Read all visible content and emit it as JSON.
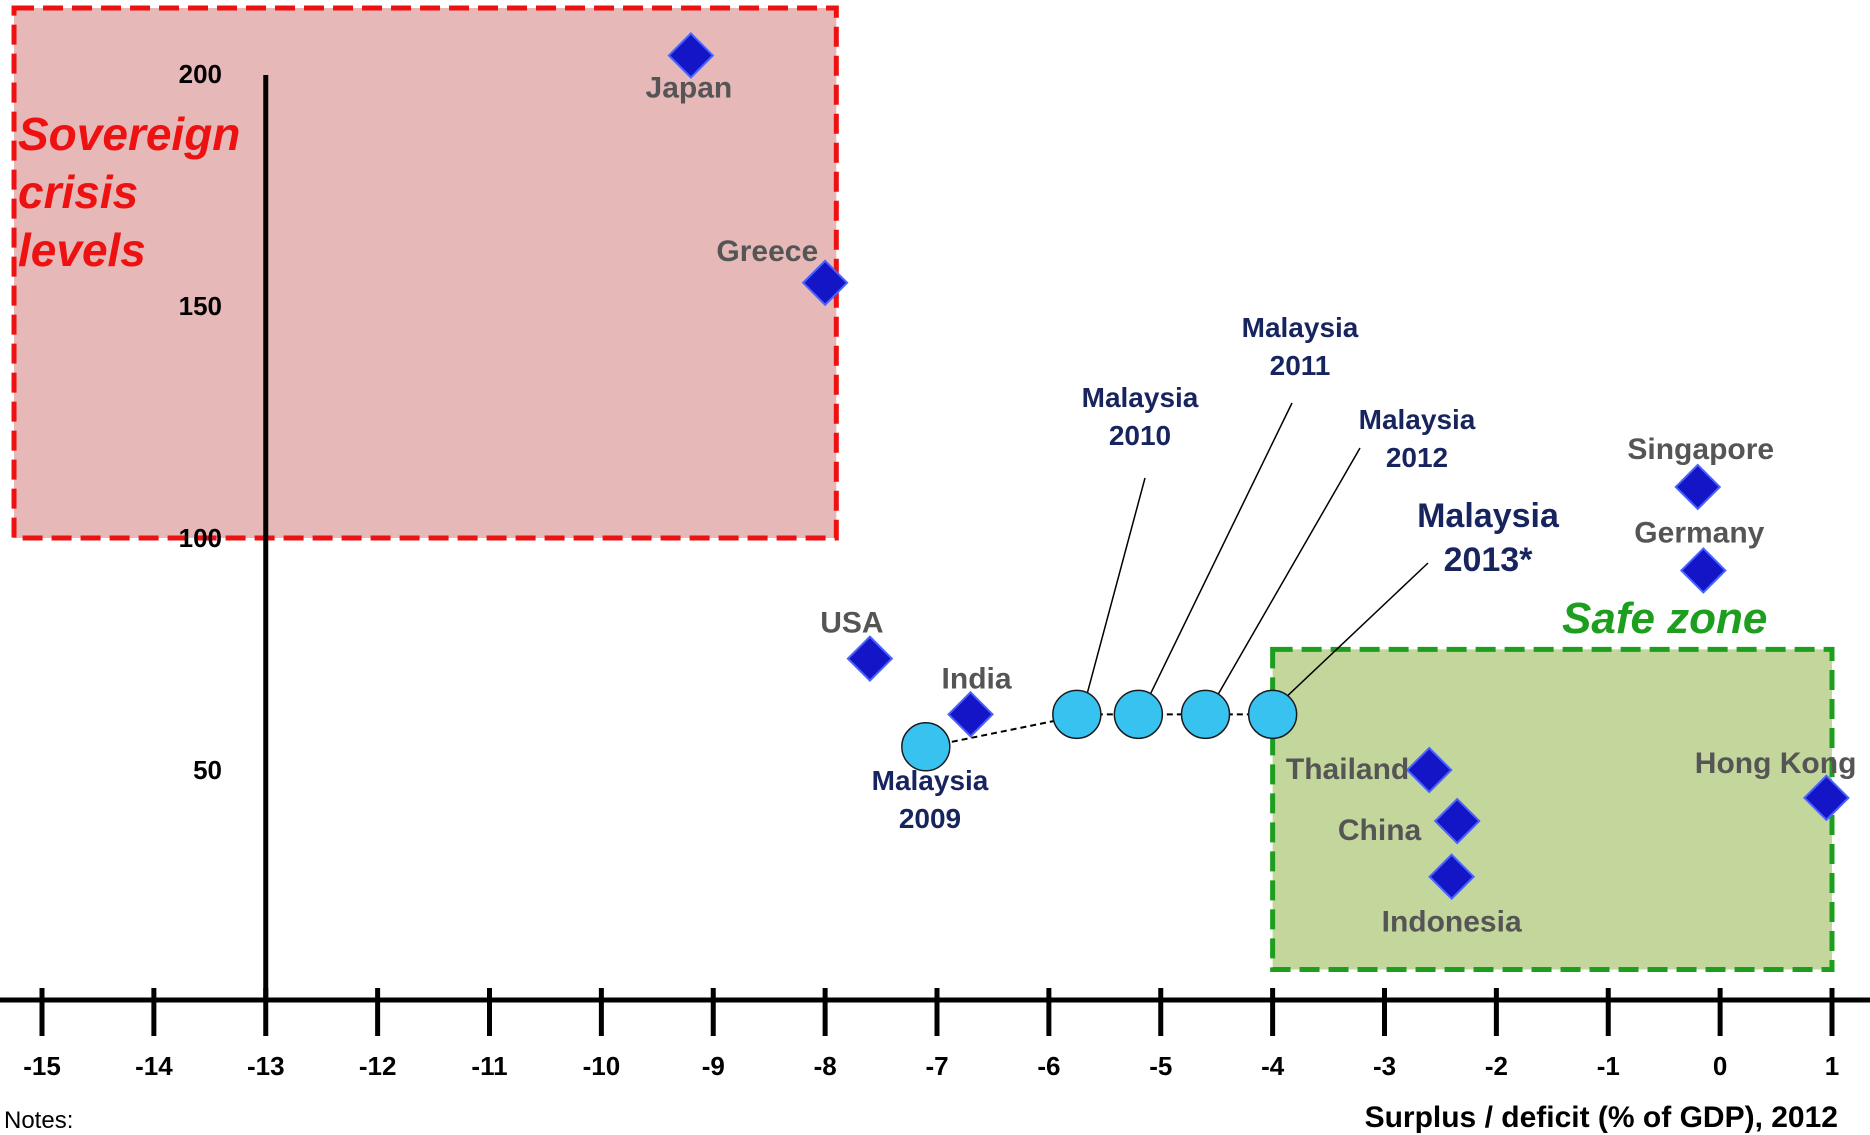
{
  "chart_data": {
    "type": "scatter",
    "title": "",
    "xlabel": "Surplus / deficit (% of GDP), 2012",
    "ylabel": "",
    "xlim": [
      -15.3,
      1.1
    ],
    "ylim": [
      0,
      215
    ],
    "x_ticks": [
      -15,
      -14,
      -13,
      -12,
      -11,
      -10,
      -9,
      -8,
      -7,
      -6,
      -5,
      -4,
      -3,
      -2,
      -1,
      0,
      1
    ],
    "y_ticks": [
      50,
      100,
      150,
      200
    ],
    "y_axis_at_x": -13,
    "grid": false,
    "legend": "none",
    "series": [
      {
        "marker": "diamond",
        "color": "#1515c8",
        "points": [
          {
            "label": "Japan",
            "x": -9.2,
            "y": 204
          },
          {
            "label": "Greece",
            "x": -8.0,
            "y": 155
          },
          {
            "label": "USA",
            "x": -7.6,
            "y": 74
          },
          {
            "label": "India",
            "x": -6.7,
            "y": 62
          },
          {
            "label": "Singapore",
            "x": -0.2,
            "y": 111
          },
          {
            "label": "Germany",
            "x": -0.15,
            "y": 93
          },
          {
            "label": "Thailand",
            "x": -2.6,
            "y": 50
          },
          {
            "label": "China",
            "x": -2.35,
            "y": 39
          },
          {
            "label": "Indonesia",
            "x": -2.4,
            "y": 27
          },
          {
            "label": "Hong Kong",
            "x": 0.95,
            "y": 44
          }
        ]
      },
      {
        "marker": "circle",
        "color": "#38c2f0",
        "points": [
          {
            "label": "Malaysia 2009",
            "x": -7.1,
            "y": 55
          },
          {
            "label": "Malaysia 2010",
            "x": -5.75,
            "y": 62
          },
          {
            "label": "Malaysia 2011",
            "x": -5.2,
            "y": 62
          },
          {
            "label": "Malaysia 2012",
            "x": -4.6,
            "y": 62
          },
          {
            "label": "Malaysia 2013*",
            "x": -4.0,
            "y": 62
          }
        ]
      }
    ],
    "zones": [
      {
        "label": "Sovereign crisis levels",
        "label_lines": [
          "Sovereign",
          "crisis",
          "levels"
        ],
        "x_range": [
          -15.25,
          -7.9
        ],
        "y_range": [
          100,
          215
        ],
        "fill": "#e6b8b8",
        "border": "#ee1111"
      },
      {
        "label": "Safe zone",
        "x_range": [
          -4.0,
          1.0
        ],
        "y_range": [
          7,
          76
        ],
        "fill": "#c3d69b",
        "border": "#1e9e1e"
      }
    ]
  },
  "footer": {
    "notes": "Notes:"
  }
}
